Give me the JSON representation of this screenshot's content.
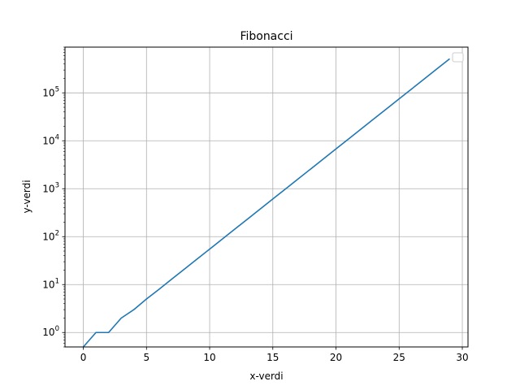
{
  "chart_data": {
    "type": "line",
    "title": "Fibonacci",
    "xlabel": "x-verdi",
    "ylabel": "y-verdi",
    "yscale": "log",
    "grid": true,
    "legend": "top-right",
    "xlim": [
      -1.45,
      30.45
    ],
    "ylim": [
      0.5,
      900000
    ],
    "x_ticks": [
      0,
      5,
      10,
      15,
      20,
      25,
      30
    ],
    "x_tick_labels": [
      "0",
      "5",
      "10",
      "15",
      "20",
      "25",
      "30"
    ],
    "y_ticks": [
      1,
      10,
      100,
      1000,
      10000,
      100000
    ],
    "y_tick_labels": [
      {
        "base": "10",
        "exp": "0"
      },
      {
        "base": "10",
        "exp": "1"
      },
      {
        "base": "10",
        "exp": "2"
      },
      {
        "base": "10",
        "exp": "3"
      },
      {
        "base": "10",
        "exp": "4"
      },
      {
        "base": "10",
        "exp": "5"
      }
    ],
    "series": [
      {
        "color": "#1f77b4",
        "x": [
          0,
          1,
          2,
          3,
          4,
          5,
          6,
          7,
          8,
          9,
          10,
          11,
          12,
          13,
          14,
          15,
          16,
          17,
          18,
          19,
          20,
          21,
          22,
          23,
          24,
          25,
          26,
          27,
          28,
          29
        ],
        "values": [
          0,
          1,
          1,
          2,
          3,
          5,
          8,
          13,
          21,
          34,
          55,
          89,
          144,
          233,
          377,
          610,
          987,
          1597,
          2584,
          4181,
          6765,
          10946,
          17711,
          28657,
          46368,
          75025,
          121393,
          196418,
          317811,
          514229
        ]
      }
    ]
  },
  "colors": {
    "grid": "#b0b0b0",
    "axes": "#000000",
    "legend_border": "#cccccc"
  }
}
